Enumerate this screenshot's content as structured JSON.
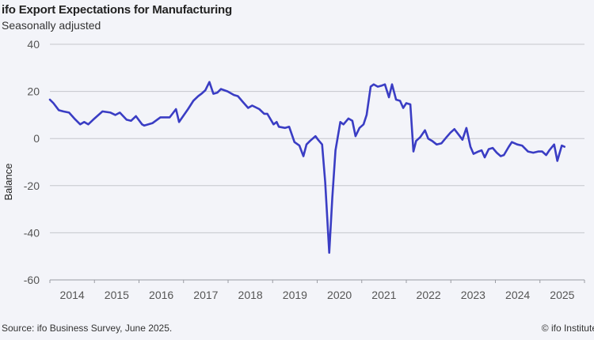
{
  "header": {
    "title": "ifo Export Expectations for Manufacturing",
    "subtitle": "Seasonally adjusted"
  },
  "footer": {
    "source": "Source: ifo Business Survey, June 2025.",
    "copyright": "© ifo Institute"
  },
  "colors": {
    "line": "#3a3dc4",
    "grid": "#c4c6cc",
    "background": "#f3f4f9"
  },
  "chart_data": {
    "type": "line",
    "title": "ifo Export Expectations for Manufacturing",
    "subtitle": "Seasonally adjusted",
    "xlabel": "",
    "ylabel": "Balance",
    "xlim": [
      2014.0,
      2026.0
    ],
    "ylim": [
      -60,
      40
    ],
    "yticks": [
      40,
      20,
      0,
      -20,
      -40,
      -60
    ],
    "xtick_labels": [
      "2014",
      "2015",
      "2016",
      "2017",
      "2018",
      "2019",
      "2020",
      "2021",
      "2022",
      "2023",
      "2024",
      "2025"
    ],
    "grid": true,
    "legend": "none",
    "series": [
      {
        "name": "ifo Export Expectations",
        "points": [
          [
            2014.0,
            16.5
          ],
          [
            2014.08,
            15.0
          ],
          [
            2014.2,
            12.0
          ],
          [
            2014.3,
            11.5
          ],
          [
            2014.43,
            11.0
          ],
          [
            2014.55,
            8.5
          ],
          [
            2014.68,
            6.0
          ],
          [
            2014.77,
            7.0
          ],
          [
            2014.86,
            6.0
          ],
          [
            2014.97,
            8.0
          ],
          [
            2015.18,
            11.5
          ],
          [
            2015.36,
            11.0
          ],
          [
            2015.47,
            10.0
          ],
          [
            2015.57,
            11.0
          ],
          [
            2015.72,
            8.0
          ],
          [
            2015.82,
            7.5
          ],
          [
            2015.93,
            9.5
          ],
          [
            2016.07,
            6.0
          ],
          [
            2016.12,
            5.5
          ],
          [
            2016.3,
            6.5
          ],
          [
            2016.48,
            9.0
          ],
          [
            2016.69,
            9.0
          ],
          [
            2016.83,
            12.5
          ],
          [
            2016.9,
            7.0
          ],
          [
            2017.1,
            12.5
          ],
          [
            2017.22,
            16.0
          ],
          [
            2017.33,
            18.0
          ],
          [
            2017.4,
            19.0
          ],
          [
            2017.49,
            20.5
          ],
          [
            2017.58,
            24.0
          ],
          [
            2017.67,
            19.0
          ],
          [
            2017.76,
            19.5
          ],
          [
            2017.84,
            21.0
          ],
          [
            2017.99,
            20.0
          ],
          [
            2018.13,
            18.5
          ],
          [
            2018.22,
            18.0
          ],
          [
            2018.31,
            16.0
          ],
          [
            2018.45,
            13.0
          ],
          [
            2018.54,
            14.0
          ],
          [
            2018.7,
            12.5
          ],
          [
            2018.81,
            10.5
          ],
          [
            2018.88,
            10.5
          ],
          [
            2019.02,
            6.0
          ],
          [
            2019.09,
            7.0
          ],
          [
            2019.14,
            5.0
          ],
          [
            2019.28,
            4.5
          ],
          [
            2019.37,
            5.0
          ],
          [
            2019.49,
            -1.5
          ],
          [
            2019.6,
            -3.0
          ],
          [
            2019.69,
            -7.5
          ],
          [
            2019.76,
            -2.5
          ],
          [
            2019.84,
            -1.0
          ],
          [
            2019.96,
            1.0
          ],
          [
            2020.02,
            -0.5
          ],
          [
            2020.11,
            -2.5
          ],
          [
            2020.18,
            -18.5
          ],
          [
            2020.27,
            -48.5
          ],
          [
            2020.34,
            -25.0
          ],
          [
            2020.41,
            -5.0
          ],
          [
            2020.52,
            7.0
          ],
          [
            2020.59,
            6.0
          ],
          [
            2020.7,
            8.5
          ],
          [
            2020.79,
            7.5
          ],
          [
            2020.86,
            1.0
          ],
          [
            2020.95,
            4.5
          ],
          [
            2021.04,
            6.0
          ],
          [
            2021.11,
            10.0
          ],
          [
            2021.2,
            22.0
          ],
          [
            2021.27,
            23.0
          ],
          [
            2021.36,
            22.0
          ],
          [
            2021.45,
            22.5
          ],
          [
            2021.52,
            23.0
          ],
          [
            2021.61,
            17.5
          ],
          [
            2021.68,
            23.0
          ],
          [
            2021.77,
            16.5
          ],
          [
            2021.86,
            16.0
          ],
          [
            2021.93,
            13.0
          ],
          [
            2022.0,
            15.0
          ],
          [
            2022.09,
            14.5
          ],
          [
            2022.16,
            -5.5
          ],
          [
            2022.22,
            -1.0
          ],
          [
            2022.31,
            0.5
          ],
          [
            2022.42,
            3.5
          ],
          [
            2022.49,
            0.0
          ],
          [
            2022.58,
            -1.0
          ],
          [
            2022.68,
            -2.5
          ],
          [
            2022.79,
            -2.0
          ],
          [
            2022.9,
            0.5
          ],
          [
            2022.99,
            2.5
          ],
          [
            2023.08,
            4.0
          ],
          [
            2023.18,
            1.5
          ],
          [
            2023.26,
            -0.5
          ],
          [
            2023.35,
            4.5
          ],
          [
            2023.44,
            -3.5
          ],
          [
            2023.51,
            -6.5
          ],
          [
            2023.62,
            -5.5
          ],
          [
            2023.69,
            -5.0
          ],
          [
            2023.76,
            -8.0
          ],
          [
            2023.85,
            -4.5
          ],
          [
            2023.94,
            -4.0
          ],
          [
            2024.03,
            -6.0
          ],
          [
            2024.12,
            -7.5
          ],
          [
            2024.19,
            -7.0
          ],
          [
            2024.3,
            -3.5
          ],
          [
            2024.37,
            -1.5
          ],
          [
            2024.49,
            -2.5
          ],
          [
            2024.6,
            -3.0
          ],
          [
            2024.73,
            -5.5
          ],
          [
            2024.85,
            -6.0
          ],
          [
            2024.96,
            -5.5
          ],
          [
            2025.05,
            -5.5
          ],
          [
            2025.14,
            -7.0
          ],
          [
            2025.21,
            -5.0
          ],
          [
            2025.32,
            -2.5
          ],
          [
            2025.39,
            -9.5
          ],
          [
            2025.49,
            -3.0
          ],
          [
            2025.55,
            -3.5
          ]
        ]
      }
    ]
  }
}
